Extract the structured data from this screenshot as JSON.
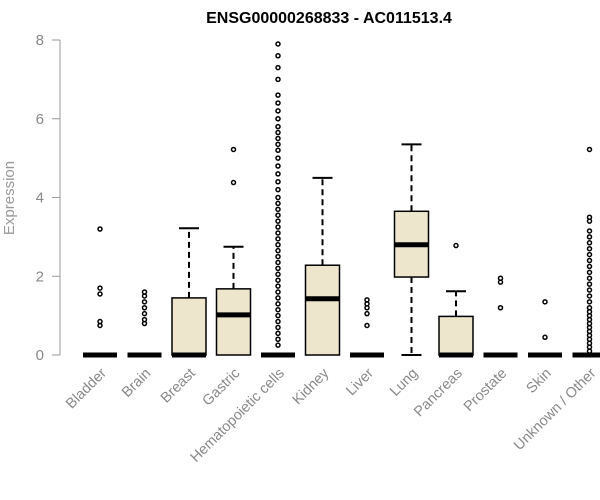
{
  "chart_data": {
    "type": "boxplot",
    "title": "ENSG00000268833 - AC011513.4",
    "ylabel": "Expression",
    "ylim": [
      0,
      8
    ],
    "yticks": [
      0,
      2,
      4,
      6,
      8
    ],
    "box_fill": "#ede6cd",
    "grid": false,
    "categories": [
      "Bladder",
      "Brain",
      "Breast",
      "Gastric",
      "Hematopoietic cells",
      "Kidney",
      "Liver",
      "Lung",
      "Pancreas",
      "Prostate",
      "Skin",
      "Unknown / Other"
    ],
    "boxes": [
      {
        "category": "Bladder",
        "q1": 0,
        "median": 0,
        "q3": 0,
        "whisker_low": 0,
        "whisker_high": 0,
        "outliers": [
          0.75,
          0.85,
          1.55,
          1.7,
          3.2
        ]
      },
      {
        "category": "Brain",
        "q1": 0,
        "median": 0,
        "q3": 0,
        "whisker_low": 0,
        "whisker_high": 0,
        "outliers": [
          0.8,
          0.9,
          1.05,
          1.2,
          1.35,
          1.5,
          1.6
        ]
      },
      {
        "category": "Breast",
        "q1": 0,
        "median": 0,
        "q3": 1.45,
        "whisker_low": 0,
        "whisker_high": 3.22,
        "outliers": []
      },
      {
        "category": "Gastric",
        "q1": 0,
        "median": 1.02,
        "q3": 1.68,
        "whisker_low": 0,
        "whisker_high": 2.75,
        "outliers": [
          4.38,
          5.22
        ]
      },
      {
        "category": "Hematopoietic cells",
        "q1": 0,
        "median": 0,
        "q3": 0,
        "whisker_low": 0,
        "whisker_high": 0,
        "outliers": [
          0.25,
          0.4,
          0.55,
          0.7,
          0.85,
          1.0,
          1.15,
          1.3,
          1.45,
          1.6,
          1.75,
          1.9,
          2.05,
          2.2,
          2.35,
          2.5,
          2.65,
          2.8,
          2.95,
          3.1,
          3.25,
          3.4,
          3.55,
          3.7,
          3.85,
          4.0,
          4.2,
          4.4,
          4.6,
          4.8,
          5.0,
          5.2,
          5.35,
          5.5,
          5.65,
          5.8,
          6.0,
          6.2,
          6.4,
          6.6,
          7.0,
          7.3,
          7.6,
          7.9
        ]
      },
      {
        "category": "Kidney",
        "q1": 0,
        "median": 1.43,
        "q3": 2.28,
        "whisker_low": 0,
        "whisker_high": 4.5,
        "outliers": []
      },
      {
        "category": "Liver",
        "q1": 0,
        "median": 0,
        "q3": 0,
        "whisker_low": 0,
        "whisker_high": 0,
        "outliers": [
          0.75,
          1.05,
          1.2,
          1.3,
          1.4
        ]
      },
      {
        "category": "Lung",
        "q1": 1.98,
        "median": 2.8,
        "q3": 3.65,
        "whisker_low": 0,
        "whisker_high": 5.35,
        "outliers": []
      },
      {
        "category": "Pancreas",
        "q1": 0,
        "median": 0,
        "q3": 0.98,
        "whisker_low": 0,
        "whisker_high": 1.62,
        "outliers": [
          2.78
        ]
      },
      {
        "category": "Prostate",
        "q1": 0,
        "median": 0,
        "q3": 0,
        "whisker_low": 0,
        "whisker_high": 0,
        "outliers": [
          1.2,
          1.85,
          1.95
        ]
      },
      {
        "category": "Skin",
        "q1": 0,
        "median": 0,
        "q3": 0,
        "whisker_low": 0,
        "whisker_high": 0,
        "outliers": [
          0.45,
          1.35
        ]
      },
      {
        "category": "Unknown / Other",
        "q1": 0,
        "median": 0,
        "q3": 0,
        "whisker_low": 0,
        "whisker_high": 0,
        "outliers": [
          0.1,
          0.2,
          0.3,
          0.4,
          0.5,
          0.6,
          0.7,
          0.8,
          0.9,
          1.0,
          1.1,
          1.2,
          1.35,
          1.5,
          1.65,
          1.8,
          1.95,
          2.1,
          2.25,
          2.4,
          2.55,
          2.7,
          2.85,
          3.0,
          3.15,
          3.4,
          3.5,
          5.22
        ]
      }
    ]
  }
}
